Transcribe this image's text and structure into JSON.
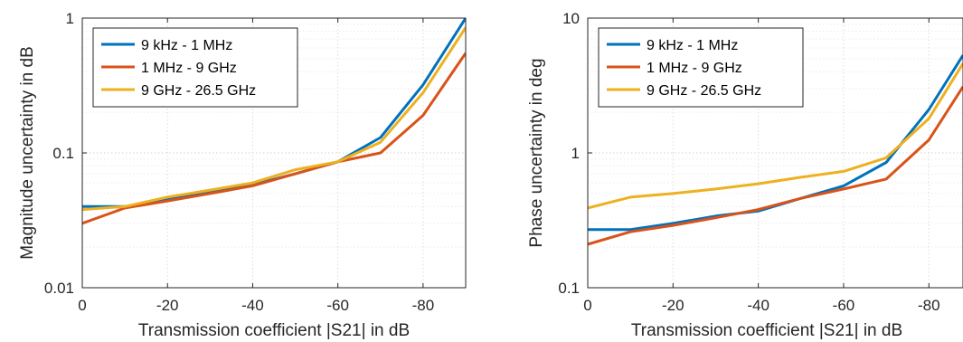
{
  "chart_data": [
    {
      "type": "line",
      "xlabel": "Transmission coefficient |S21| in dB",
      "ylabel": "Magnitude uncertainty in dB",
      "yscale": "log",
      "xlim": [
        0,
        -90
      ],
      "ylim": [
        0.01,
        1
      ],
      "x_ticks": [
        "0",
        "-20",
        "-40",
        "-60",
        "-80"
      ],
      "y_ticks": [
        "0.01",
        "0.1",
        "1"
      ],
      "grid": true,
      "legend_position": "top-left",
      "x": [
        0,
        -10,
        -20,
        -30,
        -40,
        -50,
        -60,
        -70,
        -80,
        -90
      ],
      "series": [
        {
          "name": "9 kHz - 1 MHz",
          "color": "#0072BD",
          "values": [
            0.04,
            0.04,
            0.045,
            0.051,
            0.058,
            0.07,
            0.086,
            0.13,
            0.32,
            1.0
          ]
        },
        {
          "name": "1 MHz - 9 GHz",
          "color": "#D95319",
          "values": [
            0.03,
            0.039,
            0.044,
            0.05,
            0.057,
            0.07,
            0.086,
            0.1,
            0.19,
            0.55
          ]
        },
        {
          "name": "9 GHz - 26.5 GHz",
          "color": "#EDB120",
          "values": [
            0.038,
            0.04,
            0.047,
            0.053,
            0.06,
            0.075,
            0.086,
            0.12,
            0.28,
            0.85
          ]
        }
      ]
    },
    {
      "type": "line",
      "xlabel": "Transmission coefficient |S21| in dB",
      "ylabel": "Phase uncertainty in deg",
      "yscale": "log",
      "xlim": [
        0,
        -88
      ],
      "ylim": [
        0.1,
        10
      ],
      "x_ticks": [
        "0",
        "-20",
        "-40",
        "-60",
        "-80"
      ],
      "y_ticks": [
        "0.1",
        "1",
        "10"
      ],
      "grid": true,
      "legend_position": "top-left",
      "x": [
        0,
        -10,
        -20,
        -30,
        -40,
        -50,
        -60,
        -70,
        -80,
        -88
      ],
      "series": [
        {
          "name": "9 kHz - 1 MHz",
          "color": "#0072BD",
          "values": [
            0.27,
            0.27,
            0.3,
            0.34,
            0.37,
            0.46,
            0.57,
            0.85,
            2.1,
            5.3
          ]
        },
        {
          "name": "1 MHz - 9 GHz",
          "color": "#D95319",
          "values": [
            0.21,
            0.26,
            0.29,
            0.33,
            0.38,
            0.46,
            0.54,
            0.64,
            1.25,
            3.1
          ]
        },
        {
          "name": "9 GHz - 26.5 GHz",
          "color": "#EDB120",
          "values": [
            0.39,
            0.47,
            0.5,
            0.54,
            0.59,
            0.66,
            0.73,
            0.92,
            1.8,
            4.6
          ]
        }
      ]
    }
  ]
}
